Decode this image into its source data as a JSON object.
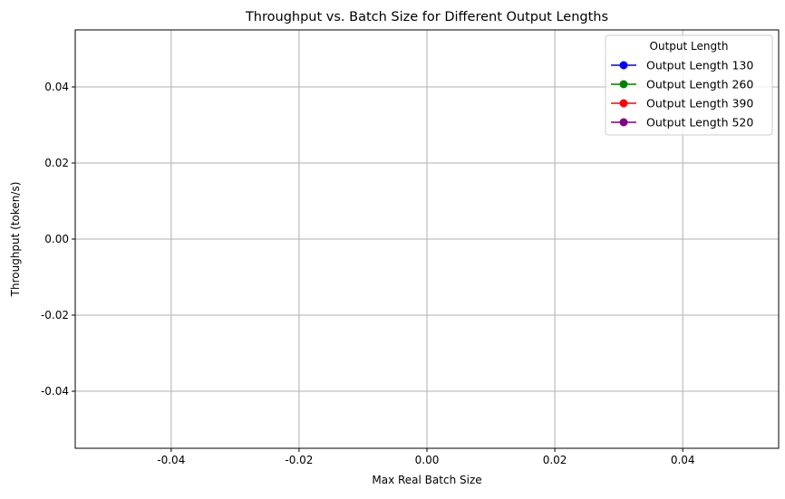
{
  "chart_data": {
    "type": "line",
    "title": "Throughput vs. Batch Size for Different Output Lengths",
    "xlabel": "Max Real Batch Size",
    "ylabel": "Throughput (token/s)",
    "xlim": [
      -0.055,
      0.055
    ],
    "ylim": [
      -0.055,
      0.055
    ],
    "x_ticks": [
      "-0.04",
      "-0.02",
      "0.00",
      "0.02",
      "0.04"
    ],
    "y_ticks": [
      "-0.04",
      "-0.02",
      "0.00",
      "0.02",
      "0.04"
    ],
    "x_tick_values": [
      -0.04,
      -0.02,
      0.0,
      0.02,
      0.04
    ],
    "y_tick_values": [
      -0.04,
      -0.02,
      0.0,
      0.02,
      0.04
    ],
    "grid": true,
    "legend_title": "Output Length",
    "legend_position": "top-right",
    "series": [
      {
        "name": "Output Length 130",
        "color": "#0000ff",
        "marker": "circle",
        "x": [],
        "y": []
      },
      {
        "name": "Output Length 260",
        "color": "#008000",
        "marker": "circle",
        "x": [],
        "y": []
      },
      {
        "name": "Output Length 390",
        "color": "#ff0000",
        "marker": "circle",
        "x": [],
        "y": []
      },
      {
        "name": "Output Length 520",
        "color": "#800080",
        "marker": "circle",
        "x": [],
        "y": []
      }
    ]
  }
}
